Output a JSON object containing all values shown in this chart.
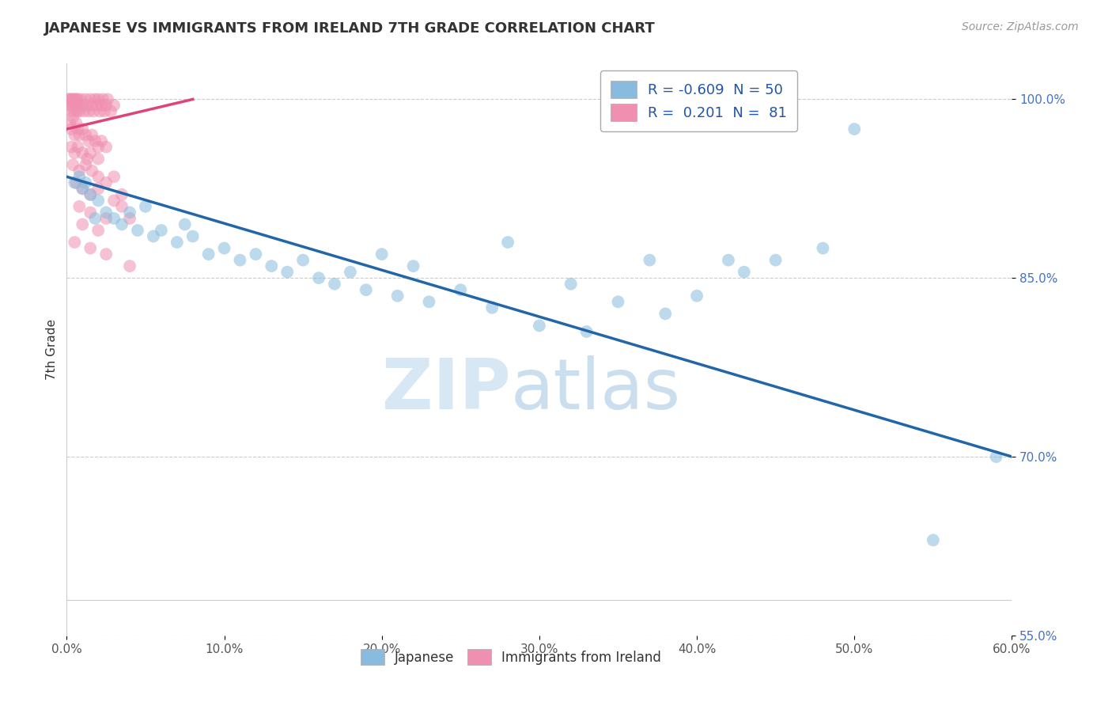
{
  "title": "JAPANESE VS IMMIGRANTS FROM IRELAND 7TH GRADE CORRELATION CHART",
  "source": "Source: ZipAtlas.com",
  "ylabel": "7th Grade",
  "xlim": [
    0.0,
    60.0
  ],
  "ylim": [
    58.0,
    103.0
  ],
  "xtick_vals": [
    0.0,
    10.0,
    20.0,
    30.0,
    40.0,
    50.0,
    60.0
  ],
  "ytick_vals": [
    100.0,
    85.0,
    70.0,
    55.0
  ],
  "grid_color": "#cccccc",
  "background_color": "#ffffff",
  "blue_color": "#88bbdd",
  "pink_color": "#f090b0",
  "blue_line_color": "#2266aa",
  "pink_line_color": "#dd4477",
  "blue_R": -0.609,
  "blue_N": 50,
  "pink_R": 0.201,
  "pink_N": 81,
  "legend_label_blue": "Japanese",
  "legend_label_pink": "Immigrants from Ireland",
  "blue_line": [
    [
      0.0,
      93.5
    ],
    [
      60.0,
      70.0
    ]
  ],
  "pink_line": [
    [
      0.0,
      97.5
    ],
    [
      8.0,
      100.0
    ]
  ],
  "blue_scatter": [
    [
      0.5,
      93.0
    ],
    [
      0.8,
      93.5
    ],
    [
      1.0,
      92.5
    ],
    [
      1.2,
      93.0
    ],
    [
      1.5,
      92.0
    ],
    [
      1.8,
      90.0
    ],
    [
      2.0,
      91.5
    ],
    [
      2.5,
      90.5
    ],
    [
      3.0,
      90.0
    ],
    [
      3.5,
      89.5
    ],
    [
      4.0,
      90.5
    ],
    [
      4.5,
      89.0
    ],
    [
      5.0,
      91.0
    ],
    [
      5.5,
      88.5
    ],
    [
      6.0,
      89.0
    ],
    [
      7.0,
      88.0
    ],
    [
      7.5,
      89.5
    ],
    [
      8.0,
      88.5
    ],
    [
      9.0,
      87.0
    ],
    [
      10.0,
      87.5
    ],
    [
      11.0,
      86.5
    ],
    [
      12.0,
      87.0
    ],
    [
      13.0,
      86.0
    ],
    [
      14.0,
      85.5
    ],
    [
      15.0,
      86.5
    ],
    [
      16.0,
      85.0
    ],
    [
      17.0,
      84.5
    ],
    [
      18.0,
      85.5
    ],
    [
      19.0,
      84.0
    ],
    [
      20.0,
      87.0
    ],
    [
      21.0,
      83.5
    ],
    [
      22.0,
      86.0
    ],
    [
      23.0,
      83.0
    ],
    [
      25.0,
      84.0
    ],
    [
      27.0,
      82.5
    ],
    [
      28.0,
      88.0
    ],
    [
      30.0,
      81.0
    ],
    [
      32.0,
      84.5
    ],
    [
      33.0,
      80.5
    ],
    [
      35.0,
      83.0
    ],
    [
      37.0,
      86.5
    ],
    [
      38.0,
      82.0
    ],
    [
      40.0,
      83.5
    ],
    [
      42.0,
      86.5
    ],
    [
      43.0,
      85.5
    ],
    [
      45.0,
      86.5
    ],
    [
      48.0,
      87.5
    ],
    [
      50.0,
      97.5
    ],
    [
      55.0,
      63.0
    ],
    [
      59.0,
      70.0
    ]
  ],
  "pink_scatter": [
    [
      0.1,
      100.0
    ],
    [
      0.15,
      99.5
    ],
    [
      0.2,
      100.0
    ],
    [
      0.25,
      99.0
    ],
    [
      0.3,
      100.0
    ],
    [
      0.35,
      99.5
    ],
    [
      0.4,
      100.0
    ],
    [
      0.45,
      99.0
    ],
    [
      0.5,
      100.0
    ],
    [
      0.55,
      99.5
    ],
    [
      0.6,
      100.0
    ],
    [
      0.65,
      99.0
    ],
    [
      0.7,
      100.0
    ],
    [
      0.75,
      99.5
    ],
    [
      0.8,
      99.0
    ],
    [
      0.9,
      100.0
    ],
    [
      1.0,
      99.5
    ],
    [
      1.1,
      99.0
    ],
    [
      1.2,
      100.0
    ],
    [
      1.3,
      99.5
    ],
    [
      1.4,
      99.0
    ],
    [
      1.5,
      100.0
    ],
    [
      1.6,
      99.5
    ],
    [
      1.7,
      99.0
    ],
    [
      1.8,
      100.0
    ],
    [
      1.9,
      99.5
    ],
    [
      2.0,
      100.0
    ],
    [
      2.1,
      99.0
    ],
    [
      2.2,
      99.5
    ],
    [
      2.3,
      100.0
    ],
    [
      2.4,
      99.0
    ],
    [
      2.5,
      99.5
    ],
    [
      2.6,
      100.0
    ],
    [
      2.8,
      99.0
    ],
    [
      3.0,
      99.5
    ],
    [
      0.2,
      98.0
    ],
    [
      0.3,
      97.5
    ],
    [
      0.4,
      98.5
    ],
    [
      0.5,
      97.0
    ],
    [
      0.6,
      98.0
    ],
    [
      0.7,
      97.5
    ],
    [
      0.8,
      97.0
    ],
    [
      1.0,
      97.5
    ],
    [
      1.2,
      97.0
    ],
    [
      1.4,
      96.5
    ],
    [
      1.6,
      97.0
    ],
    [
      1.8,
      96.5
    ],
    [
      2.0,
      96.0
    ],
    [
      2.2,
      96.5
    ],
    [
      2.5,
      96.0
    ],
    [
      0.3,
      96.0
    ],
    [
      0.5,
      95.5
    ],
    [
      0.7,
      96.0
    ],
    [
      1.0,
      95.5
    ],
    [
      1.3,
      95.0
    ],
    [
      1.5,
      95.5
    ],
    [
      2.0,
      95.0
    ],
    [
      0.4,
      94.5
    ],
    [
      0.8,
      94.0
    ],
    [
      1.2,
      94.5
    ],
    [
      1.6,
      94.0
    ],
    [
      2.0,
      93.5
    ],
    [
      2.5,
      93.0
    ],
    [
      3.0,
      93.5
    ],
    [
      0.6,
      93.0
    ],
    [
      1.0,
      92.5
    ],
    [
      1.5,
      92.0
    ],
    [
      2.0,
      92.5
    ],
    [
      3.0,
      91.5
    ],
    [
      3.5,
      92.0
    ],
    [
      0.8,
      91.0
    ],
    [
      1.5,
      90.5
    ],
    [
      2.5,
      90.0
    ],
    [
      3.5,
      91.0
    ],
    [
      4.0,
      90.0
    ],
    [
      1.0,
      89.5
    ],
    [
      2.0,
      89.0
    ],
    [
      0.5,
      88.0
    ],
    [
      1.5,
      87.5
    ],
    [
      2.5,
      87.0
    ],
    [
      4.0,
      86.0
    ]
  ]
}
